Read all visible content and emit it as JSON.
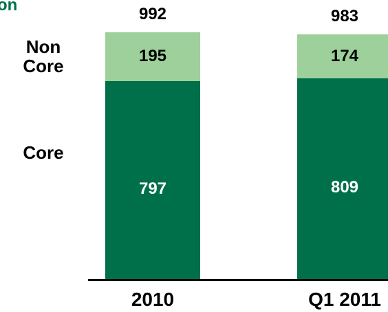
{
  "chart_data": {
    "type": "stacked_bar",
    "title": "on",
    "categories": [
      "2010",
      "Q1 2011"
    ],
    "series": [
      {
        "name": "Core",
        "color": "#00704a",
        "values": [
          797,
          809
        ]
      },
      {
        "name": "Non Core",
        "color": "#9dd09a",
        "values": [
          195,
          174
        ]
      }
    ],
    "totals": [
      992,
      983
    ]
  }
}
